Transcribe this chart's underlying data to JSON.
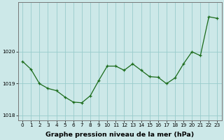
{
  "x": [
    0,
    1,
    2,
    3,
    4,
    5,
    6,
    7,
    8,
    9,
    10,
    11,
    12,
    13,
    14,
    15,
    16,
    17,
    18,
    19,
    20,
    21,
    22,
    23
  ],
  "y": [
    1019.7,
    1019.45,
    1019.0,
    1018.85,
    1018.78,
    1018.58,
    1018.42,
    1018.4,
    1018.62,
    1019.1,
    1019.55,
    1019.55,
    1019.42,
    1019.62,
    1019.42,
    1019.22,
    1019.2,
    1019.0,
    1019.18,
    1019.62,
    1020.0,
    1019.88,
    1021.1,
    1021.05
  ],
  "line_color": "#1a6b1a",
  "marker_color": "#1a6b1a",
  "bg_color": "#cce8e8",
  "grid_color": "#99cccc",
  "xlabel": "Graphe pression niveau de la mer (hPa)",
  "ylim_min": 1017.85,
  "ylim_max": 1021.55,
  "yticks": [
    1018,
    1019,
    1020
  ],
  "xticks": [
    0,
    1,
    2,
    3,
    4,
    5,
    6,
    7,
    8,
    9,
    10,
    11,
    12,
    13,
    14,
    15,
    16,
    17,
    18,
    19,
    20,
    21,
    22,
    23
  ],
  "tick_label_size": 5.2,
  "xlabel_fontsize": 6.8,
  "xlabel_fontweight": "bold",
  "border_color": "#777777"
}
